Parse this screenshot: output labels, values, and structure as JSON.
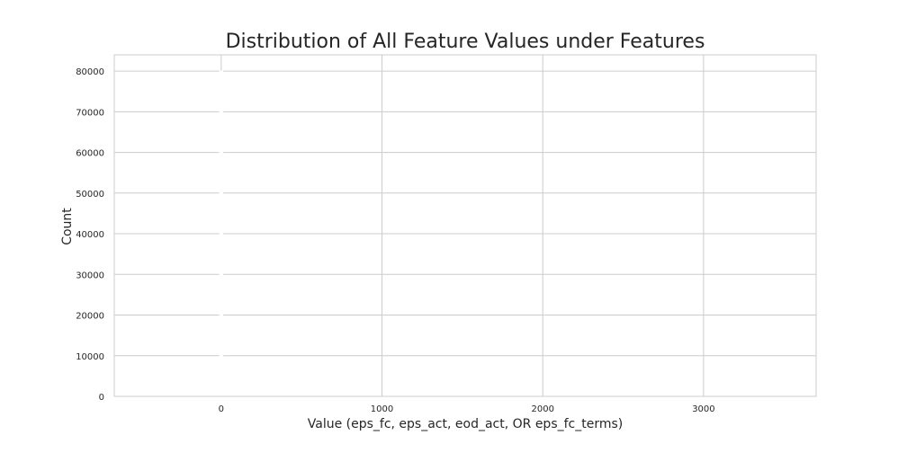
{
  "chart_data": {
    "type": "bar",
    "title": "Distribution of All Feature Values under Features",
    "xlabel": "Value (eps_fc, eps_act, eod_act, OR eps_fc_terms)",
    "ylabel": "Count",
    "xlim": [
      -665,
      3700
    ],
    "ylim": [
      0,
      84000
    ],
    "x_ticks": [
      0,
      1000,
      2000,
      3000
    ],
    "y_ticks": [
      0,
      10000,
      20000,
      30000,
      40000,
      50000,
      60000,
      70000,
      80000
    ],
    "grid": true,
    "bars": [
      {
        "x0": -10,
        "x1": 10,
        "value": 80000
      },
      {
        "x0": 10,
        "x1": 40,
        "value": 4000
      },
      {
        "x0": 40,
        "x1": 90,
        "value": 800
      }
    ],
    "bar_color": "#ffffff"
  }
}
